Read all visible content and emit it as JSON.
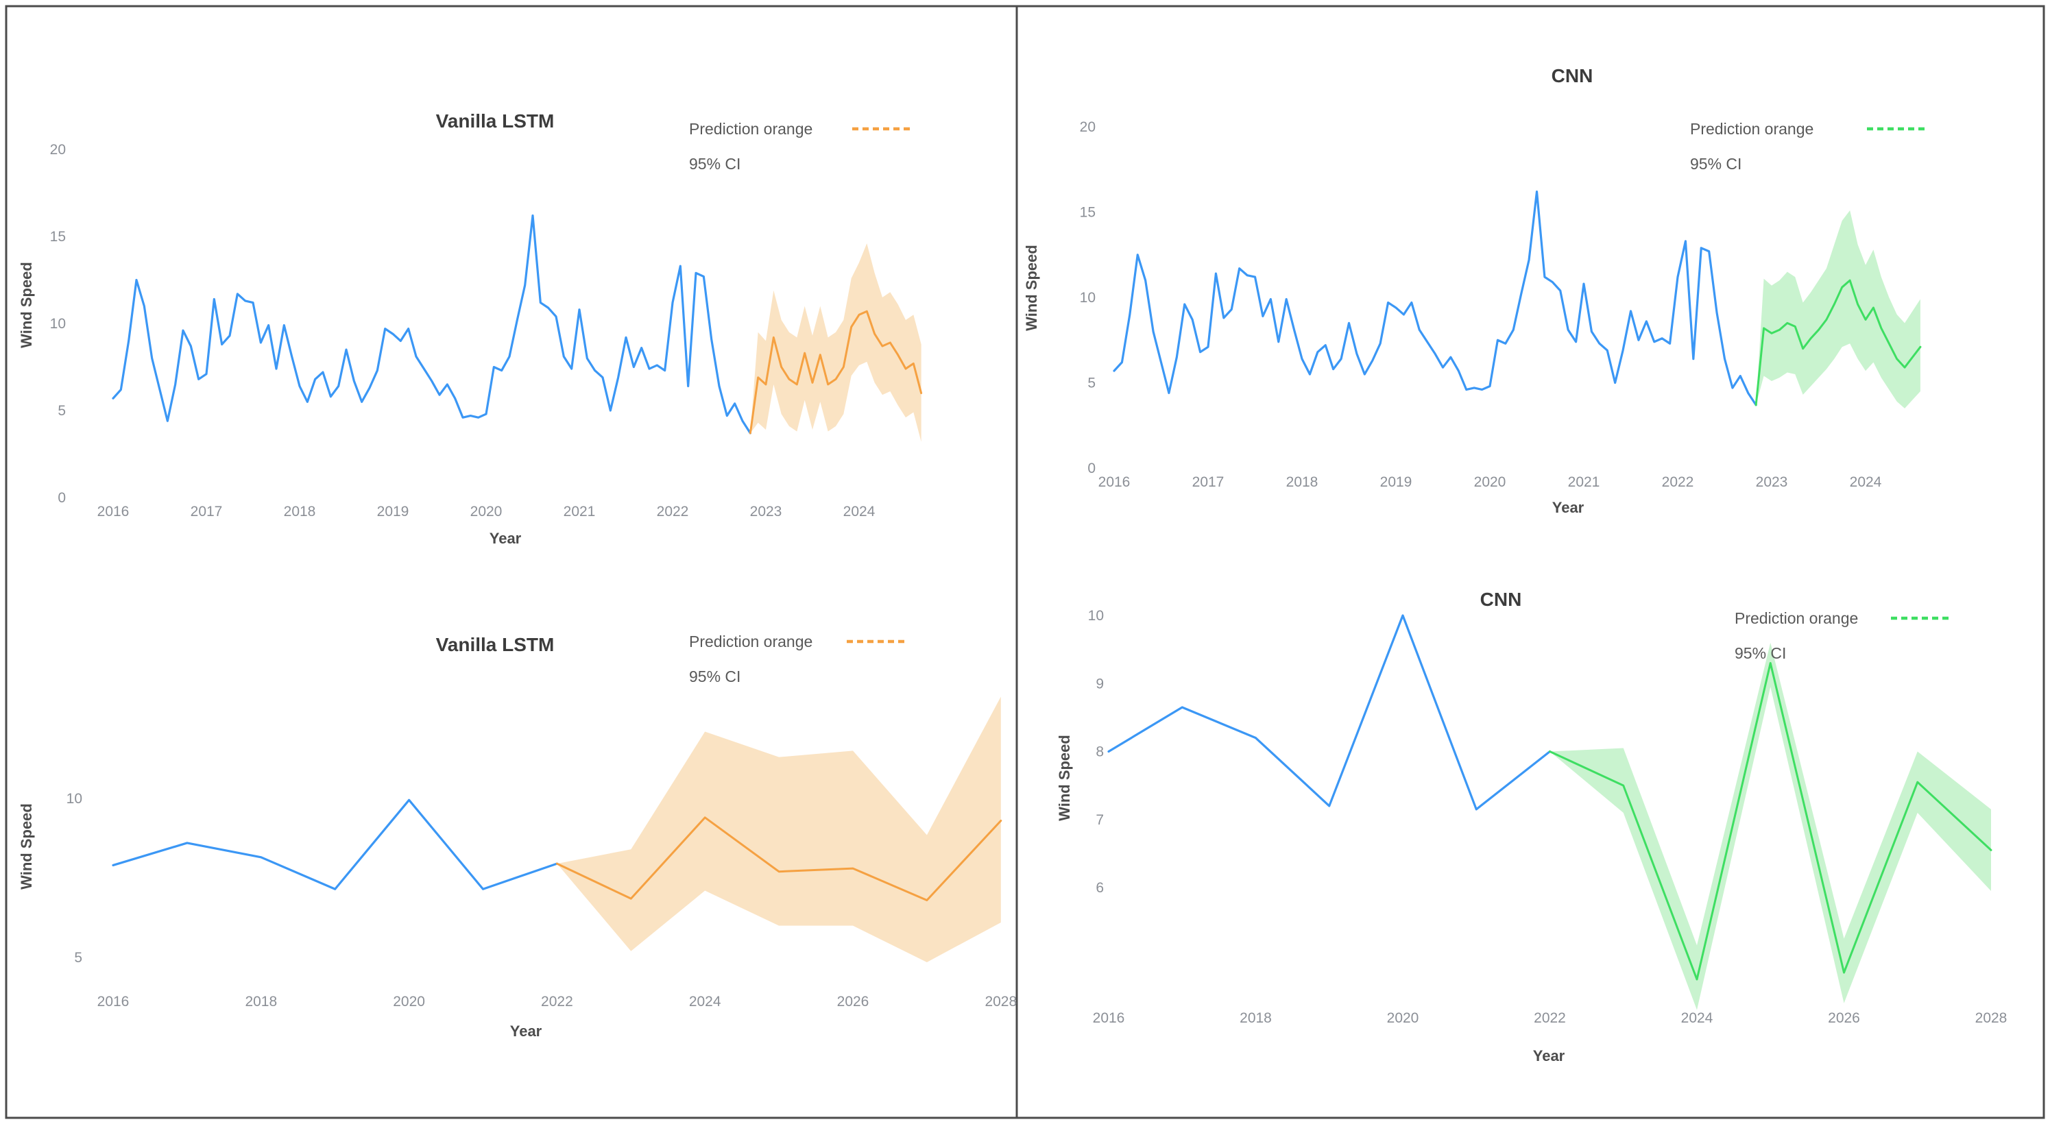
{
  "frame": {
    "border_color": "#4b4b4b",
    "divider_color": "#4b4b4b",
    "background": "#ffffff"
  },
  "chart_data": [
    {
      "type": "line",
      "title": "Vanilla LSTM",
      "xlabel": "Year",
      "ylabel": "Wind Speed",
      "legend": {
        "prediction_label": "Prediction orange",
        "ci_label": "95% CI",
        "position": "top-right"
      },
      "colors": {
        "observed": "#3b97f5",
        "prediction": "#f5a142",
        "band": "#fae3c3"
      },
      "xlim": [
        2015.8,
        2024.9
      ],
      "ylim": [
        0,
        20
      ],
      "grid": false,
      "x_ticks": [
        2016,
        2017,
        2018,
        2019,
        2020,
        2021,
        2022,
        2023,
        2024
      ],
      "y_ticks": [
        0,
        5,
        10,
        15,
        20
      ],
      "observed": {
        "name": "observed-wind-speed-monthly",
        "x_start": 2016.0,
        "x_step_years": 0.0833333,
        "values": [
          5.7,
          6.2,
          9.0,
          12.5,
          11.0,
          8.0,
          6.2,
          4.4,
          6.5,
          9.6,
          8.7,
          6.8,
          7.1,
          11.4,
          8.8,
          9.3,
          11.7,
          11.3,
          11.2,
          8.9,
          9.9,
          7.4,
          9.9,
          8.1,
          6.4,
          5.5,
          6.8,
          7.2,
          5.8,
          6.4,
          8.5,
          6.7,
          5.5,
          6.3,
          7.3,
          9.7,
          9.4,
          9.0,
          9.7,
          8.1,
          7.4,
          6.7,
          5.9,
          6.5,
          5.7,
          4.6,
          4.7,
          4.6,
          4.8,
          7.5,
          7.3,
          8.1,
          10.2,
          12.2,
          16.2,
          11.2,
          10.9,
          10.4,
          8.1,
          7.4,
          10.8,
          8.0,
          7.3,
          6.9,
          5.0,
          6.9,
          9.2,
          7.5,
          8.6,
          7.4,
          7.6,
          7.3,
          11.2,
          13.3,
          6.4,
          12.9,
          12.7,
          9.1,
          6.4,
          4.7,
          5.4,
          4.4,
          3.7
        ]
      },
      "prediction": {
        "name": "lstm-prediction-monthly",
        "x_start": 2022.8333,
        "x_step_years": 0.0833333,
        "values": [
          3.7,
          6.9,
          6.5,
          9.2,
          7.5,
          6.8,
          6.5,
          8.3,
          6.6,
          8.2,
          6.5,
          6.8,
          7.5,
          9.8,
          10.5,
          10.7,
          9.4,
          8.7,
          8.9,
          8.2,
          7.4,
          7.7,
          6.0
        ],
        "upper": [
          3.7,
          9.5,
          9.0,
          11.9,
          10.2,
          9.5,
          9.2,
          11.0,
          9.3,
          11.0,
          9.2,
          9.5,
          10.2,
          12.6,
          13.5,
          14.6,
          12.9,
          11.5,
          11.8,
          11.1,
          10.2,
          10.5,
          8.8
        ],
        "lower": [
          3.7,
          4.3,
          3.9,
          6.5,
          4.8,
          4.1,
          3.8,
          5.6,
          3.9,
          5.5,
          3.8,
          4.1,
          4.8,
          7.0,
          7.6,
          7.8,
          6.6,
          5.9,
          6.1,
          5.3,
          4.6,
          4.9,
          3.2
        ]
      }
    },
    {
      "type": "line",
      "title": "CNN",
      "xlabel": "Year",
      "ylabel": "Wind Speed",
      "legend": {
        "prediction_label": "Prediction orange",
        "ci_label": "95% CI",
        "position": "top-right"
      },
      "colors": {
        "observed": "#3b97f5",
        "prediction": "#3ede62",
        "band": "#c9f3cf"
      },
      "xlim": [
        2015.8,
        2024.9
      ],
      "ylim": [
        0,
        20
      ],
      "grid": false,
      "x_ticks": [
        2016,
        2017,
        2018,
        2019,
        2020,
        2021,
        2022,
        2023,
        2024
      ],
      "y_ticks": [
        0,
        5,
        10,
        15,
        20
      ],
      "observed": {
        "name": "observed-wind-speed-monthly",
        "x_start": 2016.0,
        "x_step_years": 0.0833333,
        "values": [
          5.7,
          6.2,
          9.0,
          12.5,
          11.0,
          8.0,
          6.2,
          4.4,
          6.5,
          9.6,
          8.7,
          6.8,
          7.1,
          11.4,
          8.8,
          9.3,
          11.7,
          11.3,
          11.2,
          8.9,
          9.9,
          7.4,
          9.9,
          8.1,
          6.4,
          5.5,
          6.8,
          7.2,
          5.8,
          6.4,
          8.5,
          6.7,
          5.5,
          6.3,
          7.3,
          9.7,
          9.4,
          9.0,
          9.7,
          8.1,
          7.4,
          6.7,
          5.9,
          6.5,
          5.7,
          4.6,
          4.7,
          4.6,
          4.8,
          7.5,
          7.3,
          8.1,
          10.2,
          12.2,
          16.2,
          11.2,
          10.9,
          10.4,
          8.1,
          7.4,
          10.8,
          8.0,
          7.3,
          6.9,
          5.0,
          6.9,
          9.2,
          7.5,
          8.6,
          7.4,
          7.6,
          7.3,
          11.2,
          13.3,
          6.4,
          12.9,
          12.7,
          9.1,
          6.4,
          4.7,
          5.4,
          4.4,
          3.7
        ]
      },
      "prediction": {
        "name": "cnn-prediction-monthly",
        "x_start": 2022.8333,
        "x_step_years": 0.0833333,
        "values": [
          3.7,
          8.2,
          7.9,
          8.1,
          8.5,
          8.3,
          7.0,
          7.6,
          8.1,
          8.7,
          9.6,
          10.6,
          11.0,
          9.6,
          8.7,
          9.4,
          8.2,
          7.3,
          6.4,
          5.9,
          6.5,
          7.1
        ],
        "upper": [
          3.7,
          11.1,
          10.7,
          11.0,
          11.5,
          11.2,
          9.7,
          10.3,
          11.0,
          11.7,
          13.1,
          14.5,
          15.1,
          13.1,
          11.9,
          12.8,
          11.2,
          10.0,
          9.0,
          8.5,
          9.2,
          9.9
        ],
        "lower": [
          3.7,
          5.4,
          5.1,
          5.3,
          5.6,
          5.5,
          4.3,
          4.8,
          5.3,
          5.8,
          6.4,
          7.1,
          7.3,
          6.4,
          5.7,
          6.2,
          5.3,
          4.6,
          3.9,
          3.5,
          4.0,
          4.5
        ]
      }
    },
    {
      "type": "line",
      "title": "Vanilla LSTM",
      "xlabel": "Year",
      "ylabel": "Wind Speed",
      "legend": {
        "prediction_label": "Prediction orange",
        "ci_label": "95% CI",
        "position": "top-right"
      },
      "colors": {
        "observed": "#3b97f5",
        "prediction": "#f5a142",
        "band": "#fae3c3"
      },
      "xlim": [
        2015.8,
        2028.3
      ],
      "ylim": [
        4,
        13.5
      ],
      "grid": false,
      "x_ticks": [
        2016,
        2018,
        2020,
        2022,
        2024,
        2026,
        2028
      ],
      "y_ticks": [
        5,
        10
      ],
      "observed": {
        "name": "observed-wind-speed-yearly",
        "x_start": 2016,
        "x_step_years": 1,
        "values": [
          7.9,
          8.6,
          8.15,
          7.15,
          9.95,
          7.15,
          7.95
        ]
      },
      "prediction": {
        "name": "lstm-prediction-yearly",
        "x_start": 2022,
        "x_step_years": 1,
        "values": [
          7.95,
          6.85,
          9.4,
          7.7,
          7.8,
          6.8,
          9.3
        ],
        "upper": [
          7.95,
          8.4,
          12.1,
          11.3,
          11.5,
          8.85,
          13.2
        ],
        "lower": [
          7.95,
          5.2,
          7.1,
          6.0,
          6.0,
          4.85,
          6.1
        ]
      }
    },
    {
      "type": "line",
      "title": "CNN",
      "xlabel": "Year",
      "ylabel": "Wind Speed",
      "legend": {
        "prediction_label": "Prediction orange",
        "ci_label": "95% CI",
        "position": "top-right"
      },
      "colors": {
        "observed": "#3b97f5",
        "prediction": "#3ede62",
        "band": "#c9f3cf"
      },
      "xlim": [
        2015.8,
        2028.3
      ],
      "ylim": [
        4,
        10.5
      ],
      "grid": false,
      "x_ticks": [
        2016,
        2018,
        2020,
        2022,
        2024,
        2026,
        2028
      ],
      "y_ticks": [
        6,
        7,
        8,
        9,
        10
      ],
      "observed": {
        "name": "observed-wind-speed-yearly",
        "x_start": 2016,
        "x_step_years": 1,
        "values": [
          8.0,
          8.65,
          8.2,
          7.2,
          10.0,
          7.15,
          8.0
        ]
      },
      "prediction": {
        "name": "cnn-prediction-yearly",
        "x_start": 2022,
        "x_step_years": 1,
        "values": [
          8.0,
          7.5,
          4.65,
          9.3,
          4.75,
          7.55,
          6.55
        ],
        "upper": [
          8.0,
          8.05,
          5.15,
          9.6,
          5.25,
          8.0,
          7.15
        ],
        "lower": [
          8.0,
          7.1,
          4.2,
          8.95,
          4.3,
          7.1,
          5.95
        ]
      }
    }
  ]
}
